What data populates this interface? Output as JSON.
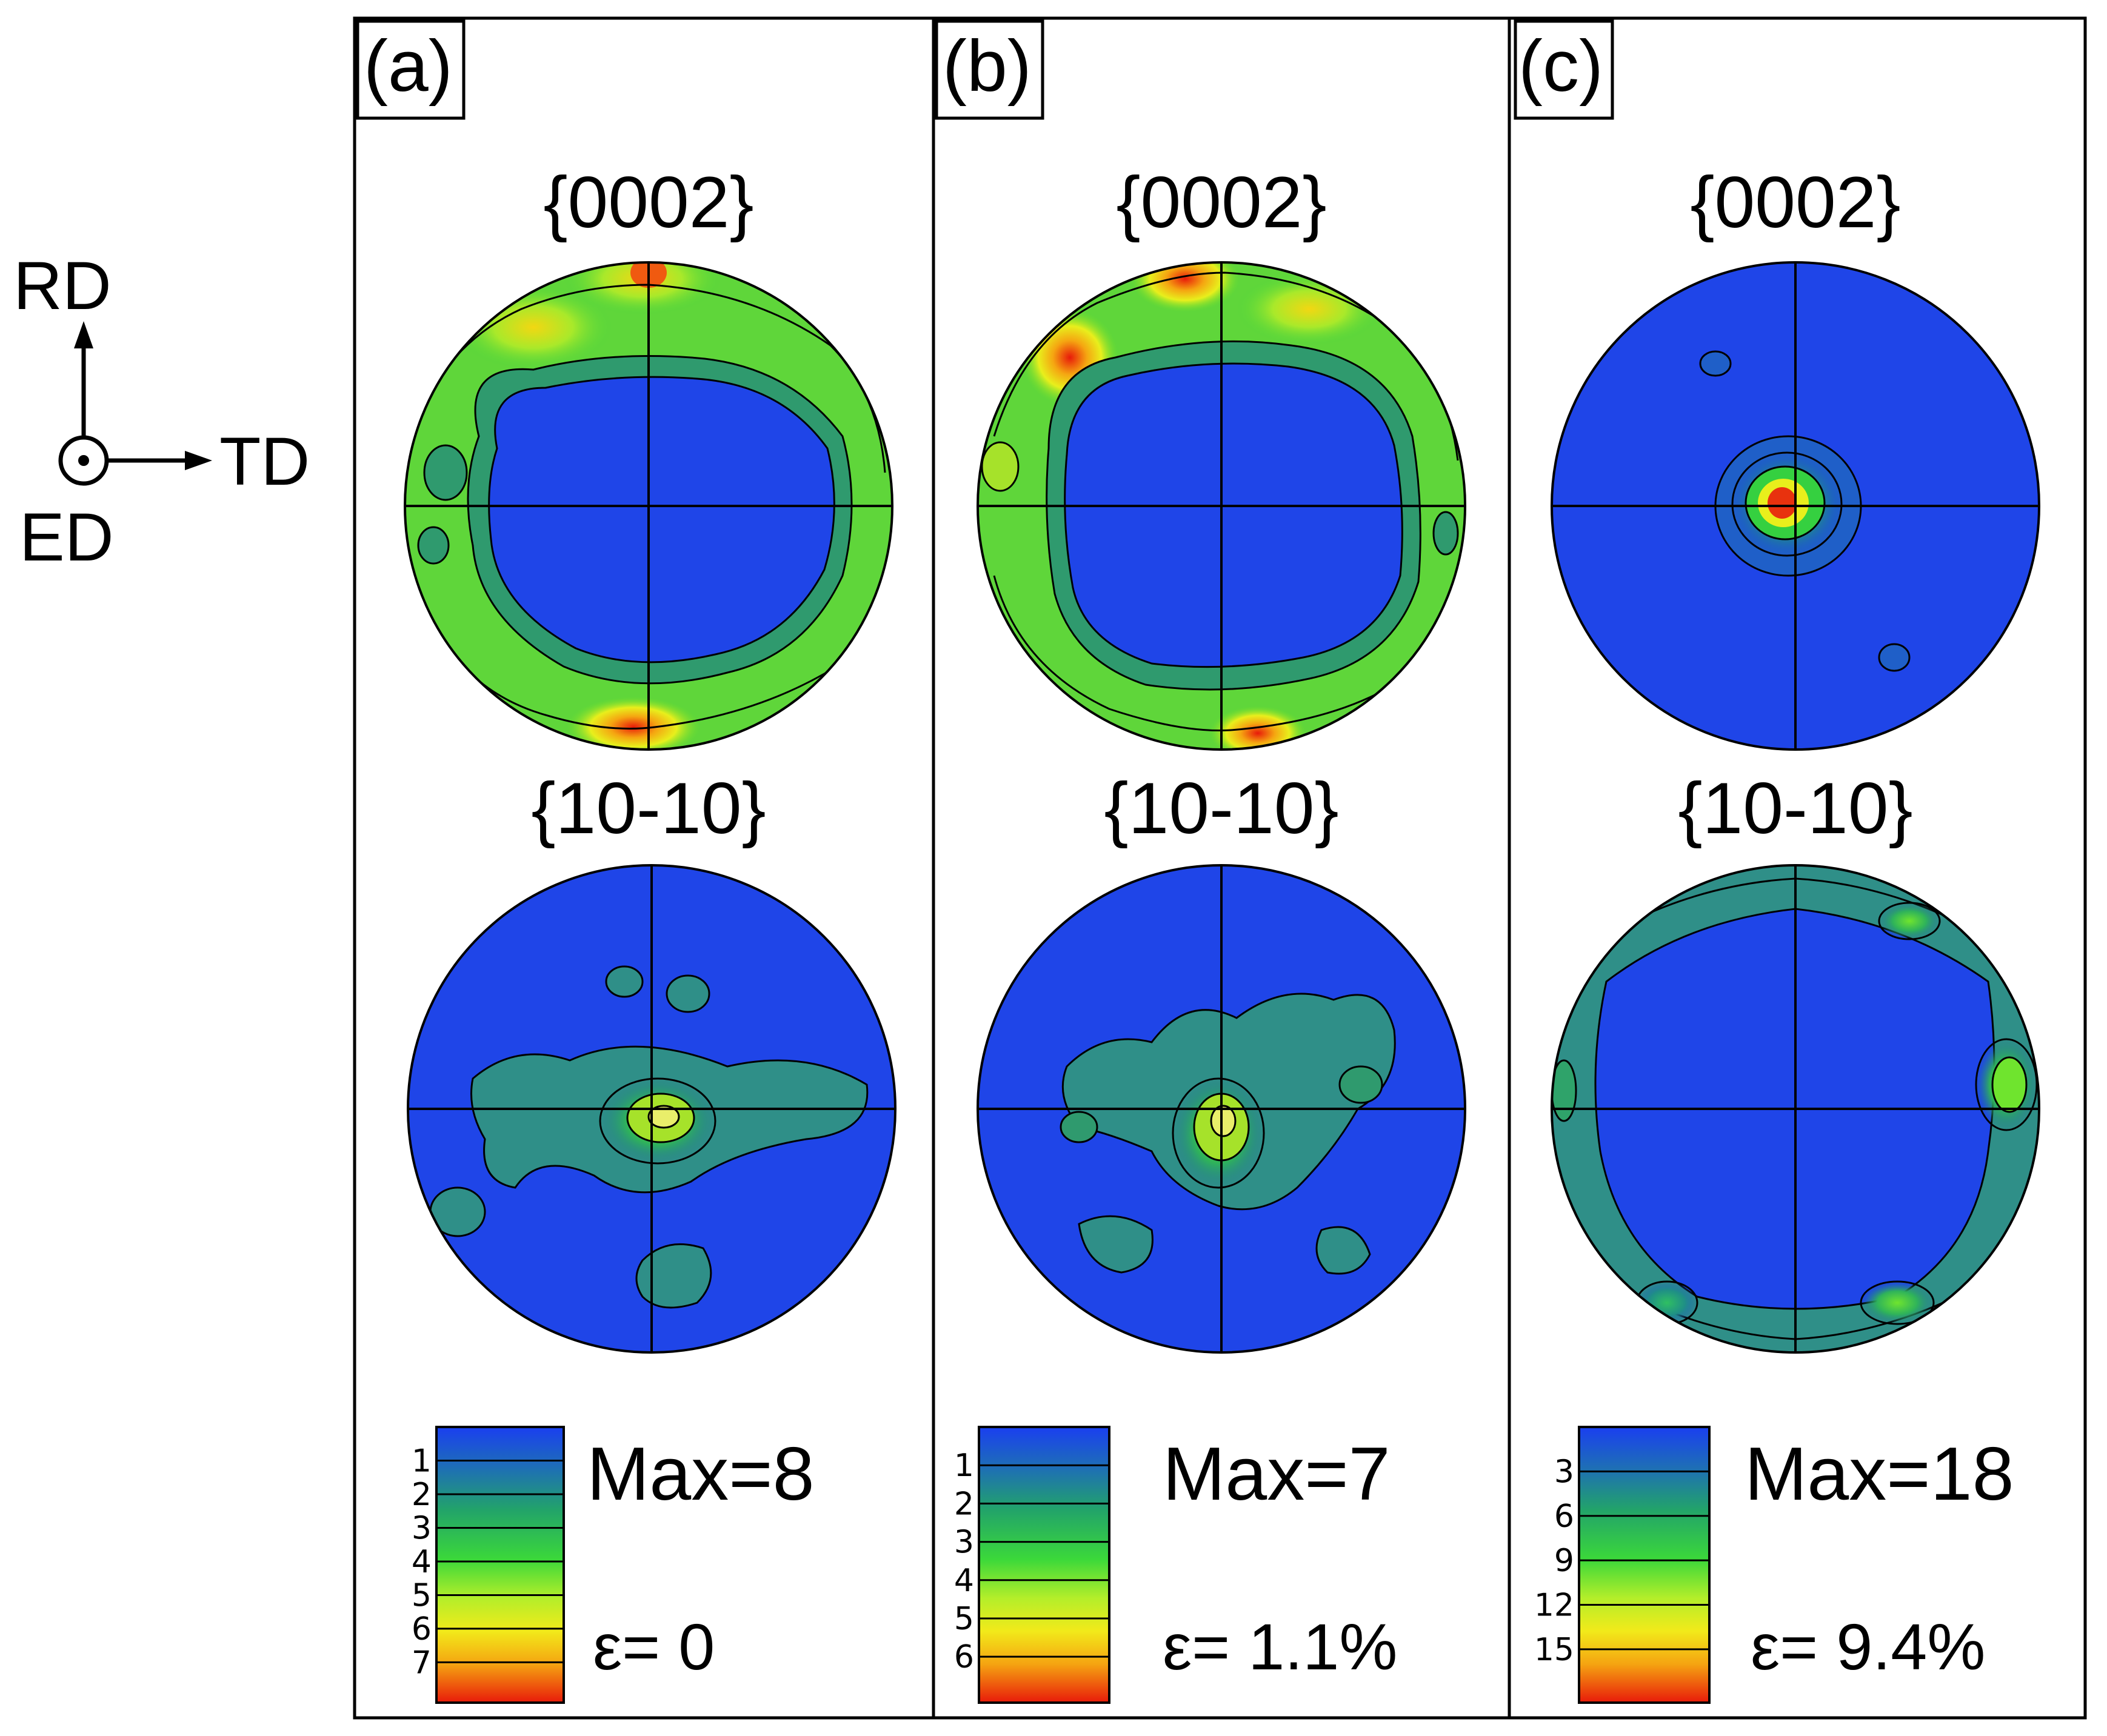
{
  "axes": {
    "rd": "RD",
    "td": "TD",
    "ed": "ED"
  },
  "panels": [
    {
      "label": "(a)",
      "pole_top": "{0002}",
      "pole_bottom": "{10-10}",
      "max": "Max=8",
      "strain": "ε= 0",
      "ticks": [
        "1",
        "2",
        "3",
        "4",
        "5",
        "6",
        "7"
      ],
      "tick_max": 8
    },
    {
      "label": "(b)",
      "pole_top": "{0002}",
      "pole_bottom": "{10-10}",
      "max": "Max=7",
      "strain": "ε= 1.1%",
      "ticks": [
        "1",
        "2",
        "3",
        "4",
        "5",
        "6"
      ],
      "tick_max": 7
    },
    {
      "label": "(c)",
      "pole_top": "{0002}",
      "pole_bottom": "{10-10}",
      "max": "Max=18",
      "strain": "ε= 9.4%",
      "ticks": [
        "3",
        "6",
        "9",
        "12",
        "15"
      ],
      "tick_max": 18
    }
  ],
  "colors": {
    "low": "#1a3ff0",
    "mid": "#35d435",
    "high": "#e82a10"
  }
}
